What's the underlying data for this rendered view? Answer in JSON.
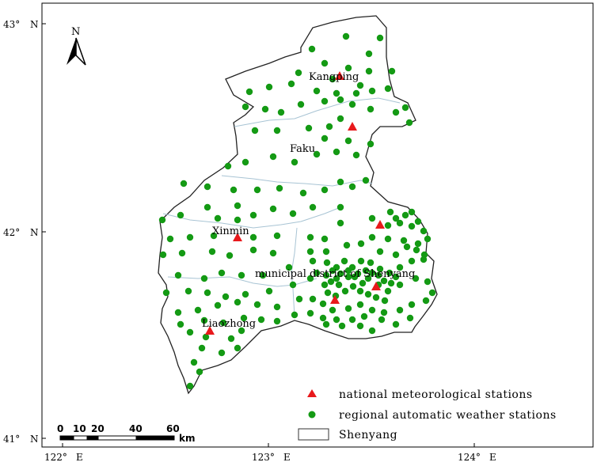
{
  "north_arrow": {
    "letter": "N"
  },
  "axes": {
    "lat_ticks": [
      {
        "deg": "43°",
        "dir": "N"
      },
      {
        "deg": "42°",
        "dir": "N"
      },
      {
        "deg": "41°",
        "dir": "N"
      }
    ],
    "lon_ticks": [
      {
        "deg": "122°",
        "dir": "E"
      },
      {
        "deg": "123°",
        "dir": "E"
      },
      {
        "deg": "124°",
        "dir": "E"
      }
    ]
  },
  "places": {
    "kangping": "Kangping",
    "faku": "Faku",
    "xinmin": "Xinmin",
    "municipal": "municipal district of Shenyang",
    "liaozhong": "Liaozhong"
  },
  "legend": {
    "national": "national meteorological stations",
    "regional": "regional automatic weather stations",
    "boundary": "Shenyang"
  },
  "scale_bar": {
    "ticks": [
      "0",
      "10",
      "20",
      "40",
      "60"
    ],
    "unit": "km"
  },
  "colors": {
    "national": "#e8191c",
    "regional": "#149a14",
    "boundary": "#222222",
    "rivers": "#a8c4d4"
  }
}
